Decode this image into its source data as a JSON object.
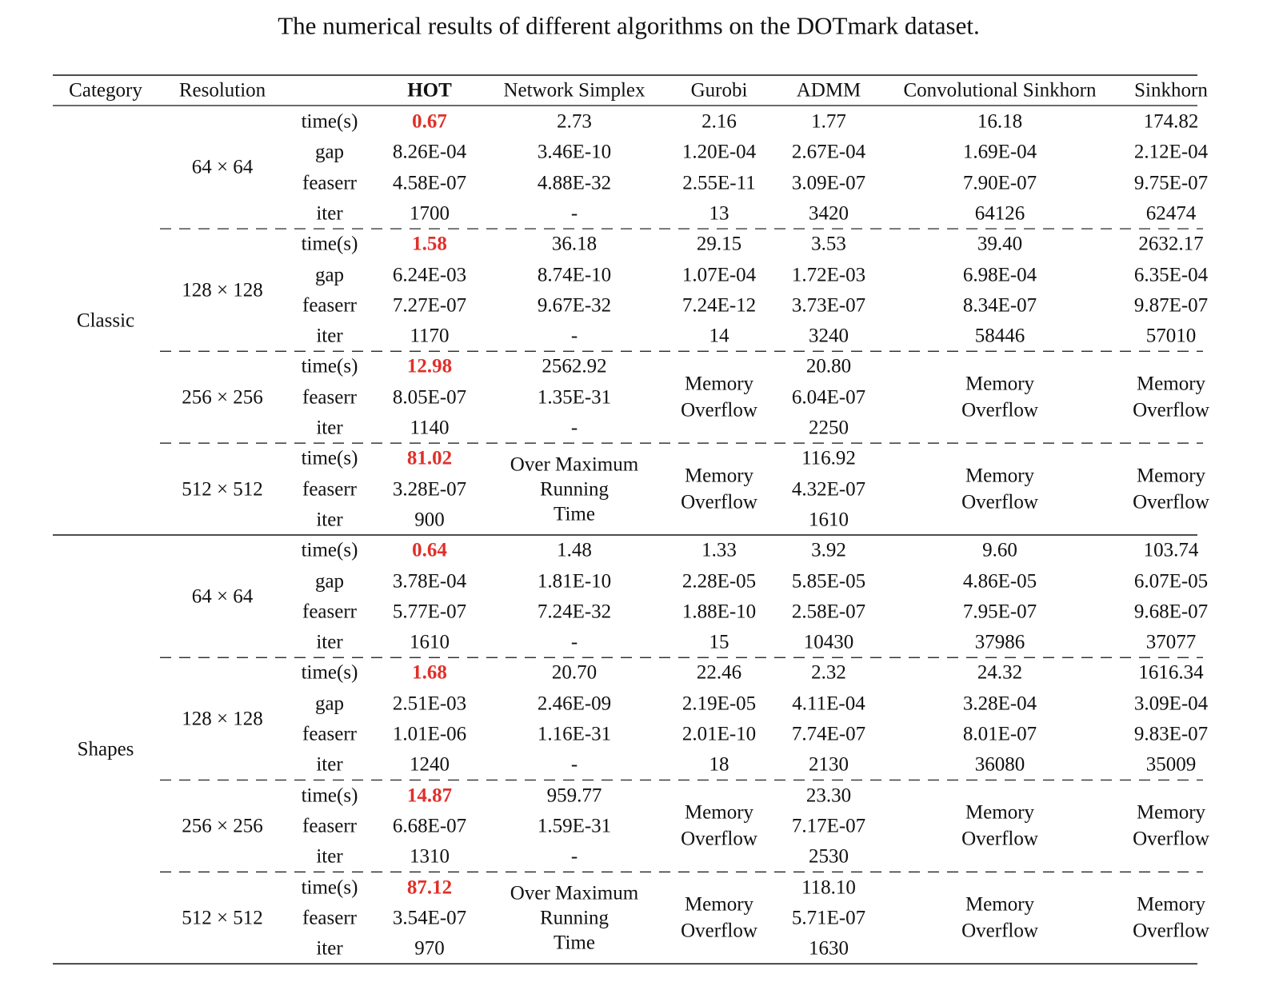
{
  "title": "The numerical results of different algorithms on the DOTmark dataset.",
  "table": {
    "headers": [
      "Category",
      "Resolution",
      "HOT",
      "Network Simplex",
      "Gurobi",
      "ADMM",
      "Convolutional Sinkhorn",
      "Sinkhorn"
    ],
    "groups": [
      {
        "category": "Classic",
        "blocks": [
          {
            "resolution": "64 × 64",
            "metrics": [
              "time(s)",
              "gap",
              "feaserr",
              "iter"
            ],
            "columns": [
              {
                "values": [
                  "0.67",
                  "8.26E-04",
                  "4.58E-07",
                  "1700"
                ]
              },
              {
                "values": [
                  "2.73",
                  "3.46E-10",
                  "4.88E-32",
                  "-"
                ]
              },
              {
                "values": [
                  "2.16",
                  "1.20E-04",
                  "2.55E-11",
                  "13"
                ]
              },
              {
                "values": [
                  "1.77",
                  "2.67E-04",
                  "3.09E-07",
                  "3420"
                ]
              },
              {
                "values": [
                  "16.18",
                  "1.69E-04",
                  "7.90E-07",
                  "64126"
                ]
              },
              {
                "values": [
                  "174.82",
                  "2.12E-04",
                  "9.75E-07",
                  "62474"
                ]
              }
            ]
          },
          {
            "resolution": "128 × 128",
            "metrics": [
              "time(s)",
              "gap",
              "feaserr",
              "iter"
            ],
            "columns": [
              {
                "values": [
                  "1.58",
                  "6.24E-03",
                  "7.27E-07",
                  "1170"
                ]
              },
              {
                "values": [
                  "36.18",
                  "8.74E-10",
                  "9.67E-32",
                  "-"
                ]
              },
              {
                "values": [
                  "29.15",
                  "1.07E-04",
                  "7.24E-12",
                  "14"
                ]
              },
              {
                "values": [
                  "3.53",
                  "1.72E-03",
                  "3.73E-07",
                  "3240"
                ]
              },
              {
                "values": [
                  "39.40",
                  "6.98E-04",
                  "8.34E-07",
                  "58446"
                ]
              },
              {
                "values": [
                  "2632.17",
                  "6.35E-04",
                  "9.87E-07",
                  "57010"
                ]
              }
            ]
          },
          {
            "resolution": "256 × 256",
            "metrics": [
              "time(s)",
              "feaserr",
              "iter"
            ],
            "columns": [
              {
                "values": [
                  "12.98",
                  "8.05E-07",
                  "1140"
                ]
              },
              {
                "values": [
                  "2562.92",
                  "1.35E-31",
                  "-"
                ]
              },
              {
                "lines": [
                  "Memory",
                  "Overflow"
                ]
              },
              {
                "values": [
                  "20.80",
                  "6.04E-07",
                  "2250"
                ]
              },
              {
                "lines": [
                  "Memory",
                  "Overflow"
                ]
              },
              {
                "lines": [
                  "Memory",
                  "Overflow"
                ]
              }
            ]
          },
          {
            "resolution": "512 × 512",
            "metrics": [
              "time(s)",
              "feaserr",
              "iter"
            ],
            "columns": [
              {
                "values": [
                  "81.02",
                  "3.28E-07",
                  "900"
                ]
              },
              {
                "lines": [
                  "Over Maximum",
                  "Running",
                  "Time"
                ]
              },
              {
                "lines": [
                  "Memory",
                  "Overflow"
                ]
              },
              {
                "values": [
                  "116.92",
                  "4.32E-07",
                  "1610"
                ]
              },
              {
                "lines": [
                  "Memory",
                  "Overflow"
                ]
              },
              {
                "lines": [
                  "Memory",
                  "Overflow"
                ]
              }
            ]
          }
        ]
      },
      {
        "category": "Shapes",
        "blocks": [
          {
            "resolution": "64 × 64",
            "metrics": [
              "time(s)",
              "gap",
              "feaserr",
              "iter"
            ],
            "columns": [
              {
                "values": [
                  "0.64",
                  "3.78E-04",
                  "5.77E-07",
                  "1610"
                ]
              },
              {
                "values": [
                  "1.48",
                  "1.81E-10",
                  "7.24E-32",
                  "-"
                ]
              },
              {
                "values": [
                  "1.33",
                  "2.28E-05",
                  "1.88E-10",
                  "15"
                ]
              },
              {
                "values": [
                  "3.92",
                  "5.85E-05",
                  "2.58E-07",
                  "10430"
                ]
              },
              {
                "values": [
                  "9.60",
                  "4.86E-05",
                  "7.95E-07",
                  "37986"
                ]
              },
              {
                "values": [
                  "103.74",
                  "6.07E-05",
                  "9.68E-07",
                  "37077"
                ]
              }
            ]
          },
          {
            "resolution": "128 × 128",
            "metrics": [
              "time(s)",
              "gap",
              "feaserr",
              "iter"
            ],
            "columns": [
              {
                "values": [
                  "1.68",
                  "2.51E-03",
                  "1.01E-06",
                  "1240"
                ]
              },
              {
                "values": [
                  "20.70",
                  "2.46E-09",
                  "1.16E-31",
                  "-"
                ]
              },
              {
                "values": [
                  "22.46",
                  "2.19E-05",
                  "2.01E-10",
                  "18"
                ]
              },
              {
                "values": [
                  "2.32",
                  "4.11E-04",
                  "7.74E-07",
                  "2130"
                ]
              },
              {
                "values": [
                  "24.32",
                  "3.28E-04",
                  "8.01E-07",
                  "36080"
                ]
              },
              {
                "values": [
                  "1616.34",
                  "3.09E-04",
                  "9.83E-07",
                  "35009"
                ]
              }
            ]
          },
          {
            "resolution": "256 × 256",
            "metrics": [
              "time(s)",
              "feaserr",
              "iter"
            ],
            "columns": [
              {
                "values": [
                  "14.87",
                  "6.68E-07",
                  "1310"
                ]
              },
              {
                "values": [
                  "959.77",
                  "1.59E-31",
                  "-"
                ]
              },
              {
                "lines": [
                  "Memory",
                  "Overflow"
                ]
              },
              {
                "values": [
                  "23.30",
                  "7.17E-07",
                  "2530"
                ]
              },
              {
                "lines": [
                  "Memory",
                  "Overflow"
                ]
              },
              {
                "lines": [
                  "Memory",
                  "Overflow"
                ]
              }
            ]
          },
          {
            "resolution": "512 × 512",
            "metrics": [
              "time(s)",
              "feaserr",
              "iter"
            ],
            "columns": [
              {
                "values": [
                  "87.12",
                  "3.54E-07",
                  "970"
                ]
              },
              {
                "lines": [
                  "Over Maximum",
                  "Running",
                  "Time"
                ]
              },
              {
                "lines": [
                  "Memory",
                  "Overflow"
                ]
              },
              {
                "values": [
                  "118.10",
                  "5.71E-07",
                  "1630"
                ]
              },
              {
                "lines": [
                  "Memory",
                  "Overflow"
                ]
              },
              {
                "lines": [
                  "Memory",
                  "Overflow"
                ]
              }
            ]
          }
        ]
      }
    ]
  }
}
